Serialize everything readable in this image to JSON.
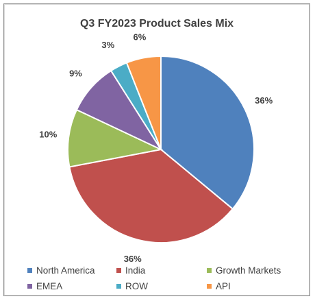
{
  "chart_data": {
    "type": "pie",
    "title": "Q3 FY2023 Product Sales Mix",
    "slices": [
      {
        "name": "North America",
        "value": 36,
        "label": "36%",
        "color": "#4f81bd"
      },
      {
        "name": "India",
        "value": 36,
        "label": "36%",
        "color": "#c0504d"
      },
      {
        "name": "Growth Markets",
        "value": 10,
        "label": "10%",
        "color": "#9bbb59"
      },
      {
        "name": "EMEA",
        "value": 9,
        "label": "9%",
        "color": "#8064a2"
      },
      {
        "name": "ROW",
        "value": 3,
        "label": "3%",
        "color": "#4bacc6"
      },
      {
        "name": "API",
        "value": 6,
        "label": "6%",
        "color": "#f79646"
      }
    ],
    "legend_position": "bottom",
    "start": "12 o'clock",
    "direction": "clockwise"
  }
}
